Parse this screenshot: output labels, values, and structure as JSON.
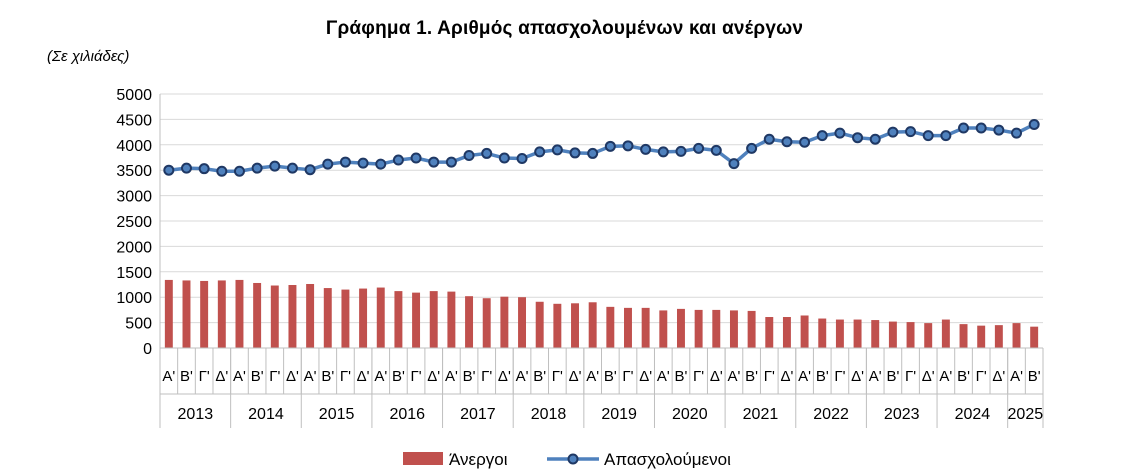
{
  "chart_data": {
    "type": "bar+line",
    "title": "Γράφημα 1. Αριθμός απασχολουμένων και ανέργων",
    "unit_label": "(Σε χιλιάδες)",
    "ylim": [
      0,
      5000
    ],
    "yticks": [
      "0",
      "500",
      "1000",
      "1500",
      "2000",
      "2500",
      "3000",
      "3500",
      "4000",
      "4500",
      "5000"
    ],
    "quarter_labels": [
      "Α'",
      "Β'",
      "Γ'",
      "Δ'"
    ],
    "years": [
      {
        "label": "2013",
        "quarters": 4
      },
      {
        "label": "2014",
        "quarters": 4
      },
      {
        "label": "2015",
        "quarters": 4
      },
      {
        "label": "2016",
        "quarters": 4
      },
      {
        "label": "2017",
        "quarters": 4
      },
      {
        "label": "2018",
        "quarters": 4
      },
      {
        "label": "2019",
        "quarters": 4
      },
      {
        "label": "2020",
        "quarters": 4
      },
      {
        "label": "2021",
        "quarters": 4
      },
      {
        "label": "2022",
        "quarters": 4
      },
      {
        "label": "2023",
        "quarters": 4
      },
      {
        "label": "2024",
        "quarters": 4
      },
      {
        "label": "2025",
        "quarters": 2
      }
    ],
    "series": [
      {
        "name": "Άνεργοι",
        "kind": "bar",
        "color": "#c0504d",
        "values": [
          1340,
          1330,
          1320,
          1330,
          1340,
          1280,
          1230,
          1240,
          1260,
          1180,
          1150,
          1170,
          1190,
          1120,
          1090,
          1120,
          1110,
          1020,
          980,
          1010,
          1000,
          910,
          870,
          880,
          900,
          810,
          790,
          790,
          740,
          770,
          750,
          750,
          740,
          730,
          610,
          610,
          640,
          580,
          560,
          560,
          550,
          520,
          510,
          490,
          560,
          470,
          440,
          450,
          490,
          420
        ]
      },
      {
        "name": "Απασχολούμενοι",
        "kind": "line",
        "color": "#4f81bd",
        "marker_color": "#1f3864",
        "values": [
          3500,
          3540,
          3530,
          3480,
          3480,
          3540,
          3580,
          3540,
          3510,
          3620,
          3660,
          3640,
          3620,
          3700,
          3740,
          3660,
          3660,
          3790,
          3830,
          3740,
          3730,
          3860,
          3900,
          3840,
          3830,
          3970,
          3980,
          3910,
          3860,
          3870,
          3930,
          3890,
          3630,
          3930,
          4110,
          4060,
          4050,
          4180,
          4230,
          4140,
          4110,
          4250,
          4260,
          4180,
          4180,
          4330,
          4330,
          4290,
          4230,
          4400
        ]
      }
    ],
    "legend": [
      "Άνεργοι",
      "Απασχολούμενοι"
    ]
  }
}
